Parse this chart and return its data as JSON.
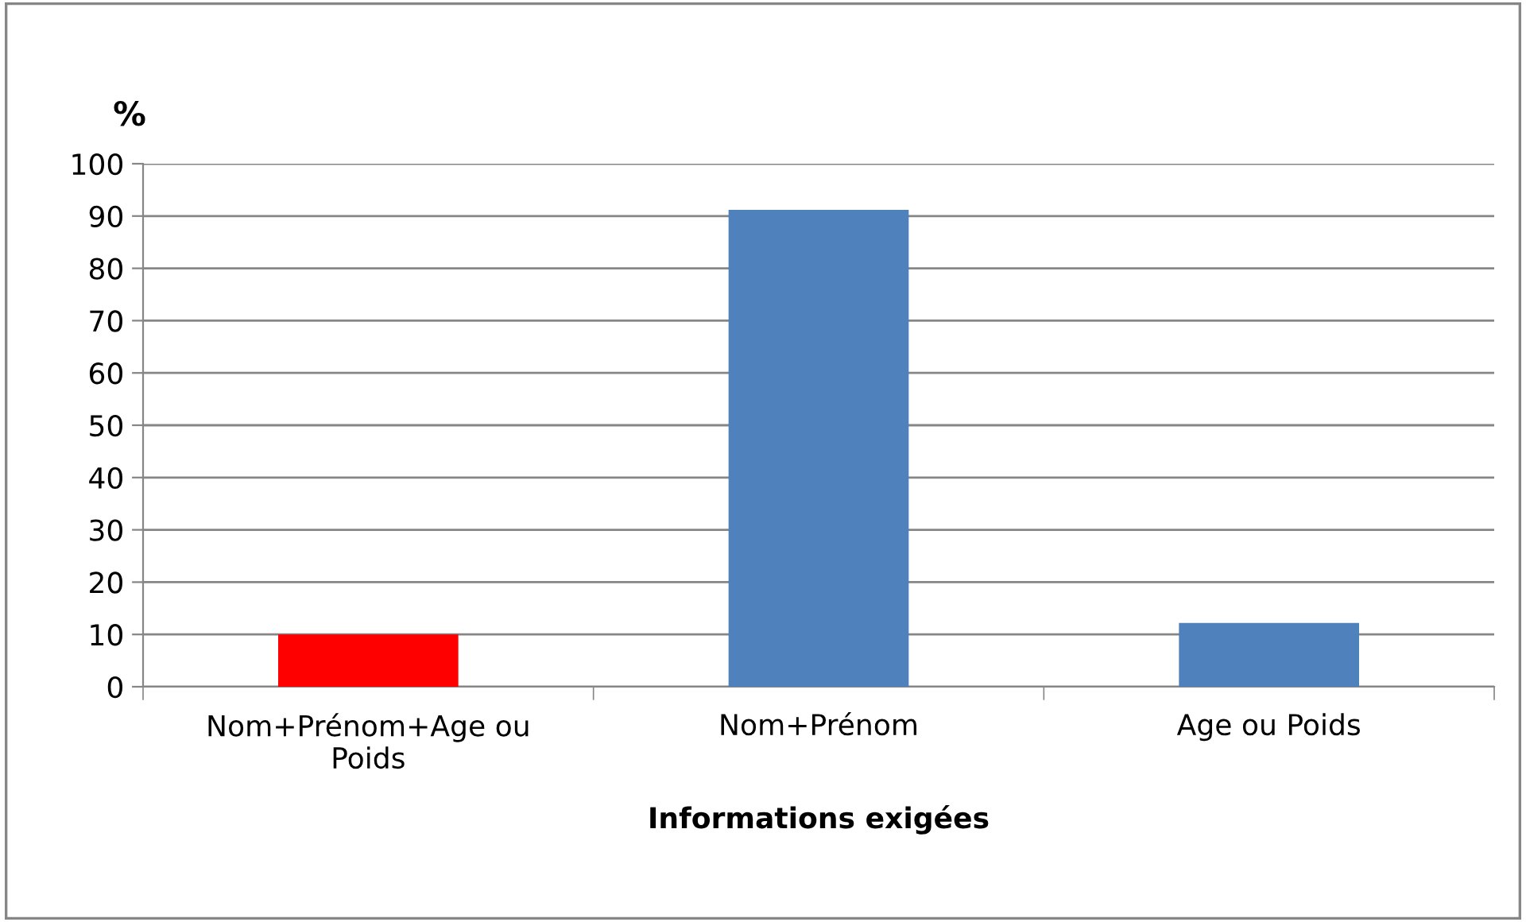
{
  "chart_data": {
    "type": "bar",
    "ylabel": "%",
    "xlabel": "Informations exigées",
    "categories": [
      "Nom+Prénom+Age ou\nPoids",
      "Nom+Prénom",
      "Age ou Poids"
    ],
    "values": [
      10,
      91.2,
      12.2
    ],
    "colors": [
      "#ff0000",
      "#4f81bd",
      "#4f81bd"
    ],
    "ylim": [
      0,
      100
    ],
    "yticks": [
      0,
      10,
      20,
      30,
      40,
      50,
      60,
      70,
      80,
      90,
      100
    ],
    "grid": "y",
    "legend": false
  }
}
